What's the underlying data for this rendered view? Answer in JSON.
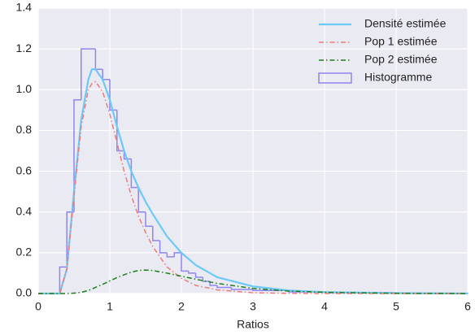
{
  "chart_data": {
    "type": "line",
    "xlabel": "Ratios",
    "x": [
      0,
      0.2,
      0.3,
      0.4,
      0.5,
      0.6,
      0.7,
      0.75,
      0.8,
      0.9,
      1.0,
      1.1,
      1.2,
      1.3,
      1.4,
      1.5,
      1.6,
      1.8,
      2.0,
      2.2,
      2.5,
      3,
      3.5,
      4,
      5,
      6
    ],
    "series": [
      {
        "name": "Densité estimée",
        "color": "#6cc9f7",
        "style": "solid",
        "values": [
          0,
          0,
          0,
          0.12,
          0.5,
          0.85,
          1.05,
          1.1,
          1.1,
          1.05,
          0.95,
          0.82,
          0.7,
          0.6,
          0.52,
          0.45,
          0.39,
          0.28,
          0.2,
          0.14,
          0.08,
          0.035,
          0.015,
          0.007,
          0.002,
          0
        ]
      },
      {
        "name": "Pop 1 estimée",
        "color": "#f07a7a",
        "style": "dashdot",
        "values": [
          0,
          0,
          0,
          0.12,
          0.48,
          0.82,
          1.0,
          1.03,
          1.04,
          0.99,
          0.88,
          0.74,
          0.6,
          0.48,
          0.38,
          0.3,
          0.23,
          0.13,
          0.075,
          0.04,
          0.018,
          0.004,
          0.001,
          0,
          0,
          0
        ]
      },
      {
        "name": "Pop 2 estimée",
        "color": "#1b7d1b",
        "style": "dashdot",
        "values": [
          0,
          0,
          0,
          0,
          0.002,
          0.006,
          0.015,
          0.022,
          0.03,
          0.045,
          0.062,
          0.078,
          0.092,
          0.105,
          0.113,
          0.115,
          0.113,
          0.1,
          0.085,
          0.07,
          0.05,
          0.025,
          0.012,
          0.006,
          0.001,
          0
        ]
      }
    ],
    "histogram": {
      "name": "Histogramme",
      "color": "#8f86ee",
      "bins": [
        0.3,
        0.4,
        0.5,
        0.6,
        0.7,
        0.8,
        0.9,
        1.0,
        1.1,
        1.2,
        1.3,
        1.4,
        1.5,
        1.6,
        1.7,
        1.8,
        1.9,
        2.0,
        2.1,
        2.2,
        2.3,
        2.4,
        2.5,
        2.6,
        2.7,
        3.0,
        3.5,
        4.0,
        5.0,
        6.0
      ],
      "counts": [
        0.13,
        0.4,
        0.95,
        1.2,
        1.2,
        1.1,
        1.05,
        0.9,
        0.7,
        0.66,
        0.52,
        0.4,
        0.33,
        0.26,
        0.2,
        0.18,
        0.2,
        0.11,
        0.1,
        0.08,
        0.06,
        0.04,
        0.03,
        0.03,
        0.02,
        0.015,
        0.008,
        0.004,
        0.001
      ]
    },
    "xlim": [
      0,
      6
    ],
    "ylim": [
      0,
      1.4
    ],
    "xticks": [
      0,
      1,
      2,
      3,
      4,
      5,
      6
    ],
    "yticks": [
      {
        "value": 0,
        "label": "0.0"
      },
      {
        "value": 0.2,
        "label": "0.2"
      },
      {
        "value": 0.4,
        "label": "0.4"
      },
      {
        "value": 0.6,
        "label": "0.6"
      },
      {
        "value": 0.8,
        "label": "0.8"
      },
      {
        "value": 1.0,
        "label": "1.0"
      },
      {
        "value": 1.2,
        "label": "1.2"
      },
      {
        "value": 1.4,
        "label": "1.4"
      }
    ],
    "grid": true,
    "legend": "upper right",
    "background": "#eaeaf2"
  }
}
